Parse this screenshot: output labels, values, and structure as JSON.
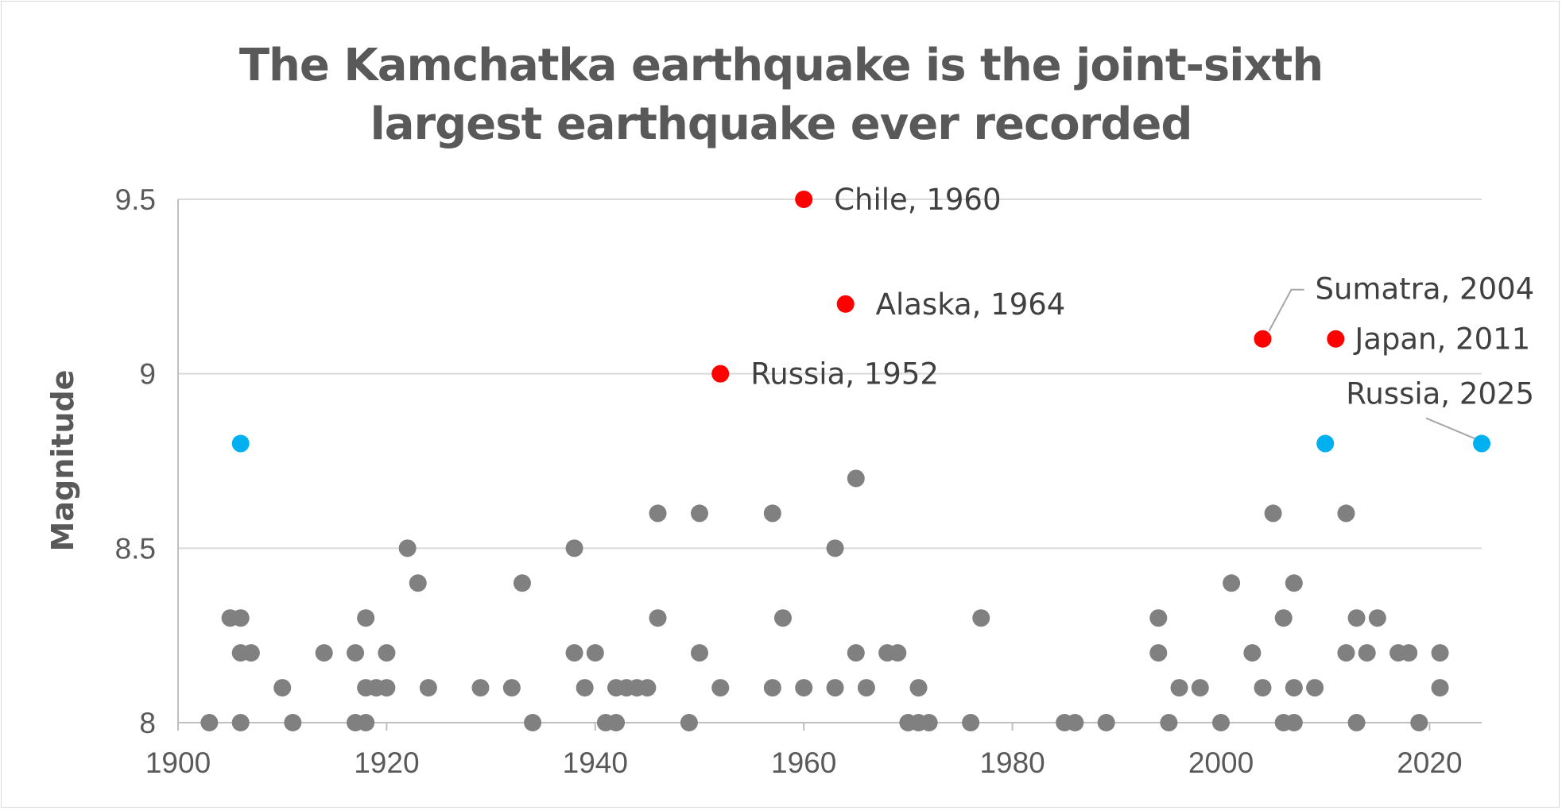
{
  "chart_data": {
    "type": "scatter",
    "title": "The Kamchatka earthquake is the joint-sixth largest earthquake ever recorded",
    "title_lines": [
      "The Kamchatka earthquake is the joint-sixth",
      "largest earthquake ever recorded"
    ],
    "xlabel": "",
    "ylabel": "Magnitude",
    "xlim": [
      1900,
      2025
    ],
    "ylim": [
      8,
      9.5
    ],
    "xticks": [
      "1900",
      "1920",
      "1940",
      "1960",
      "1980",
      "2000",
      "2020"
    ],
    "yticks": [
      "8",
      "8.5",
      "9",
      "9.5"
    ],
    "grid": "horizontal",
    "colors": {
      "other": "#808080",
      "top": "#ff0000",
      "equal": "#00b0f0"
    },
    "series": [
      {
        "color_key": "other",
        "points": [
          [
            1903,
            8.0
          ],
          [
            1905,
            8.3
          ],
          [
            1906,
            8.3
          ],
          [
            1906,
            8.2
          ],
          [
            1906,
            8.0
          ],
          [
            1907,
            8.2
          ],
          [
            1910,
            8.1
          ],
          [
            1911,
            8.0
          ],
          [
            1914,
            8.2
          ],
          [
            1917,
            8.2
          ],
          [
            1917,
            8.0
          ],
          [
            1918,
            8.3
          ],
          [
            1918,
            8.1
          ],
          [
            1918,
            8.0
          ],
          [
            1919,
            8.1
          ],
          [
            1920,
            8.2
          ],
          [
            1920,
            8.1
          ],
          [
            1922,
            8.5
          ],
          [
            1923,
            8.4
          ],
          [
            1924,
            8.1
          ],
          [
            1929,
            8.1
          ],
          [
            1932,
            8.1
          ],
          [
            1933,
            8.4
          ],
          [
            1934,
            8.0
          ],
          [
            1938,
            8.5
          ],
          [
            1938,
            8.2
          ],
          [
            1939,
            8.1
          ],
          [
            1940,
            8.2
          ],
          [
            1941,
            8.0
          ],
          [
            1942,
            8.1
          ],
          [
            1942,
            8.0
          ],
          [
            1943,
            8.1
          ],
          [
            1944,
            8.1
          ],
          [
            1945,
            8.1
          ],
          [
            1946,
            8.6
          ],
          [
            1946,
            8.3
          ],
          [
            1949,
            8.0
          ],
          [
            1950,
            8.6
          ],
          [
            1950,
            8.2
          ],
          [
            1952,
            8.1
          ],
          [
            1957,
            8.6
          ],
          [
            1957,
            8.1
          ],
          [
            1958,
            8.3
          ],
          [
            1960,
            8.1
          ],
          [
            1963,
            8.5
          ],
          [
            1963,
            8.1
          ],
          [
            1965,
            8.7
          ],
          [
            1965,
            8.2
          ],
          [
            1966,
            8.1
          ],
          [
            1968,
            8.2
          ],
          [
            1969,
            8.2
          ],
          [
            1970,
            8.0
          ],
          [
            1971,
            8.1
          ],
          [
            1971,
            8.0
          ],
          [
            1972,
            8.0
          ],
          [
            1976,
            8.0
          ],
          [
            1977,
            8.3
          ],
          [
            1985,
            8.0
          ],
          [
            1986,
            8.0
          ],
          [
            1989,
            8.0
          ],
          [
            1994,
            8.3
          ],
          [
            1994,
            8.2
          ],
          [
            1995,
            8.0
          ],
          [
            1996,
            8.1
          ],
          [
            1998,
            8.1
          ],
          [
            2000,
            8.0
          ],
          [
            2001,
            8.4
          ],
          [
            2003,
            8.2
          ],
          [
            2004,
            8.1
          ],
          [
            2005,
            8.6
          ],
          [
            2006,
            8.3
          ],
          [
            2006,
            8.0
          ],
          [
            2007,
            8.4
          ],
          [
            2007,
            8.1
          ],
          [
            2007,
            8.0
          ],
          [
            2009,
            8.1
          ],
          [
            2012,
            8.6
          ],
          [
            2012,
            8.2
          ],
          [
            2013,
            8.3
          ],
          [
            2013,
            8.0
          ],
          [
            2014,
            8.2
          ],
          [
            2015,
            8.3
          ],
          [
            2017,
            8.2
          ],
          [
            2018,
            8.2
          ],
          [
            2019,
            8.0
          ],
          [
            2021,
            8.2
          ],
          [
            2021,
            8.1
          ]
        ]
      },
      {
        "color_key": "top",
        "points": [
          [
            1960,
            9.5
          ],
          [
            1964,
            9.2
          ],
          [
            1952,
            9.0
          ],
          [
            2004,
            9.1
          ],
          [
            2011,
            9.1
          ]
        ]
      },
      {
        "color_key": "equal",
        "points": [
          [
            1906,
            8.8
          ],
          [
            2010,
            8.8
          ],
          [
            2025,
            8.8
          ]
        ]
      }
    ],
    "annotations": [
      {
        "text": "Chile, 1960",
        "x": 1960,
        "y": 9.5,
        "pos": "right"
      },
      {
        "text": "Alaska, 1964",
        "x": 1964,
        "y": 9.2,
        "pos": "right"
      },
      {
        "text": "Russia, 1952",
        "x": 1952,
        "y": 9.0,
        "pos": "right"
      },
      {
        "text": "Sumatra, 2004",
        "x": 2004,
        "y": 9.1,
        "pos": "above-right-leader"
      },
      {
        "text": "Japan, 2011",
        "x": 2011,
        "y": 9.1,
        "pos": "right"
      },
      {
        "text": "Russia, 2025",
        "x": 2025,
        "y": 8.8,
        "pos": "above-left-leader"
      }
    ]
  }
}
